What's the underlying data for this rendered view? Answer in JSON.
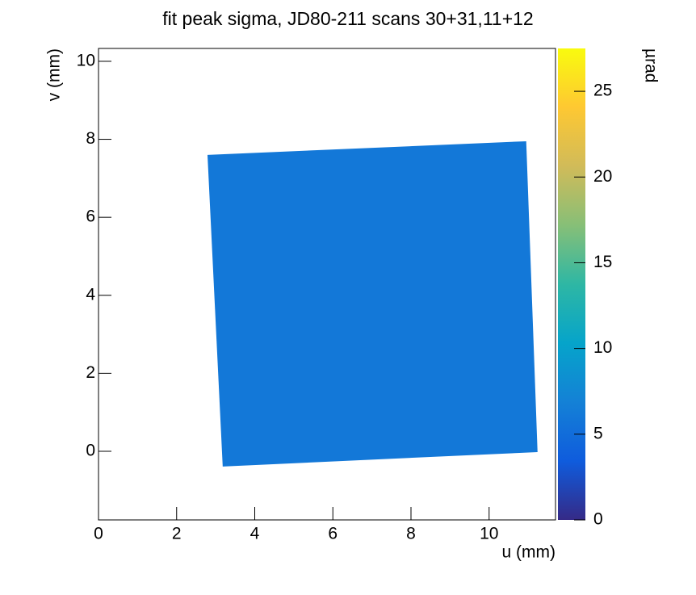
{
  "chart_data": {
    "type": "heatmap",
    "title": "fit peak sigma, JD80-211 scans 30+31,11+12",
    "x_label": "u (mm)",
    "y_label": "v (mm)",
    "z_label": "µrad",
    "xlim": [
      0,
      11.7
    ],
    "xticks": [
      0,
      2,
      4,
      6,
      8,
      10
    ],
    "ylim": [
      -1.76,
      10.33
    ],
    "yticks": [
      0,
      2,
      4,
      6,
      8,
      10
    ],
    "zlim": [
      0,
      27.5
    ],
    "zticks": [
      0,
      5,
      10,
      15,
      20,
      25
    ],
    "colormap": [
      "#352a87",
      "#0f5cdd",
      "#1481d6",
      "#06a4ca",
      "#2eb7a4",
      "#87bf77",
      "#d1bb59",
      "#fec832",
      "#f9fb0e"
    ],
    "region": {
      "u": [
        2.79,
        10.95,
        11.24,
        3.18
      ],
      "v": [
        7.6,
        7.95,
        -0.02,
        -0.39
      ],
      "value": 6
    }
  }
}
